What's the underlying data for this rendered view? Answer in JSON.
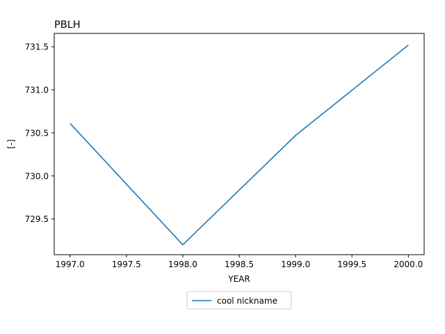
{
  "chart_data": {
    "type": "line",
    "title": "PBLH",
    "xlabel": "YEAR",
    "ylabel": "[-]",
    "xlim": [
      1996.86,
      2000.14
    ],
    "ylim": [
      729.085,
      731.655
    ],
    "xticks": [
      1997.0,
      1997.5,
      1998.0,
      1998.5,
      1999.0,
      1999.5,
      2000.0
    ],
    "xtick_labels": [
      "1997.0",
      "1997.5",
      "1998.0",
      "1998.5",
      "1999.0",
      "1999.5",
      "2000.0"
    ],
    "yticks": [
      729.5,
      730.0,
      730.5,
      731.0,
      731.5
    ],
    "ytick_labels": [
      "729.5",
      "730.0",
      "730.5",
      "731.0",
      "731.5"
    ],
    "grid": false,
    "legend": "below-center",
    "series": [
      {
        "name": "cool nickname",
        "color": "#1f77b4",
        "x": [
          1997,
          1998,
          1999,
          2000
        ],
        "y": [
          730.61,
          729.2,
          730.47,
          731.52
        ]
      }
    ]
  }
}
